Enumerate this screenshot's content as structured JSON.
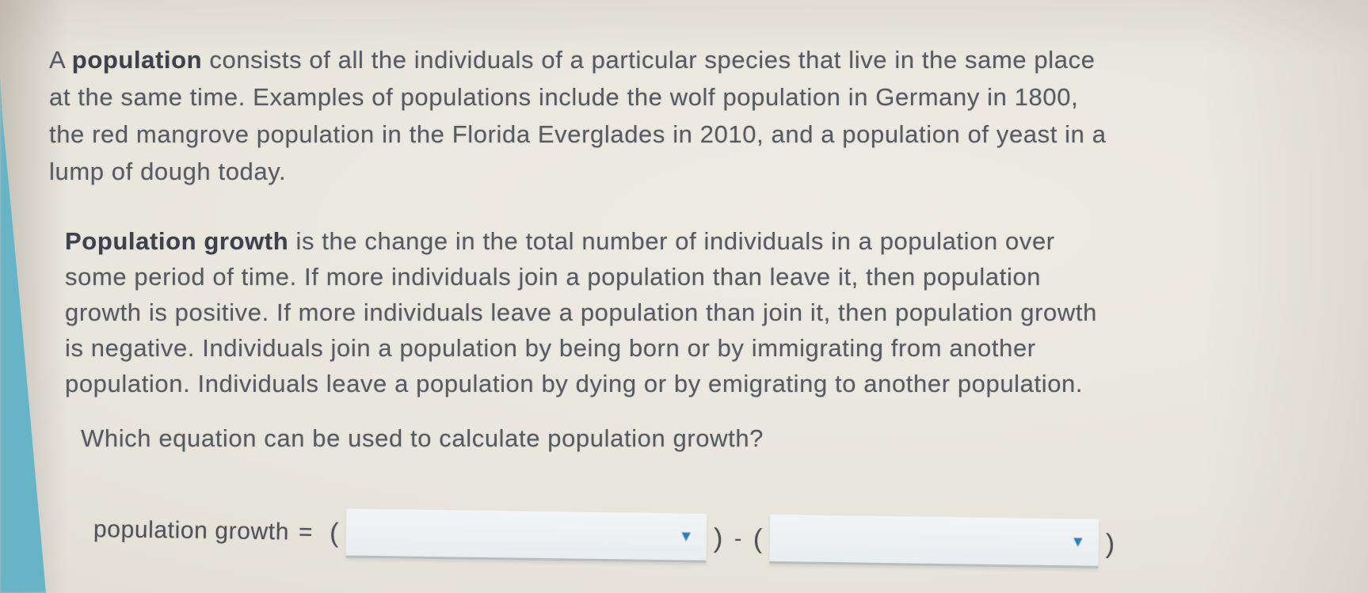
{
  "colors": {
    "background": "#e8e5dd",
    "teal_strip": "#68b4c7",
    "text": "#565b63",
    "bold_text": "#3d414b",
    "dropdown_arrow": "#2f7cb2"
  },
  "intro_paragraph": {
    "prefix": "A ",
    "term": "population",
    "body": " consists of all the individuals of a particular species that live in the same place\nat the same time. Examples of populations include the wolf population in Germany in 1800,\nthe red mangrove population in the Florida Everglades in 2010, and a population of yeast in a\nlump of dough today."
  },
  "growth_paragraph": {
    "term": "Population growth",
    "body": " is the change in the total number of individuals in a population over\nsome period of time. If more individuals join a population than leave it, then population\ngrowth is positive. If more individuals leave a population than join it, then population growth\nis negative. Individuals join a population by being born or by immigrating from another\npopulation. Individuals leave a population by dying or by emigrating to another population."
  },
  "question": {
    "text": "Which equation can be used to calculate population growth?"
  },
  "equation": {
    "label": "population growth",
    "equals_sign": "=",
    "open_paren": "(",
    "close_paren": ")",
    "minus_sign": "-",
    "first_dropdown": {
      "value": "",
      "arrow_glyph": "▼"
    },
    "second_dropdown": {
      "value": "",
      "arrow_glyph": "▼"
    }
  }
}
